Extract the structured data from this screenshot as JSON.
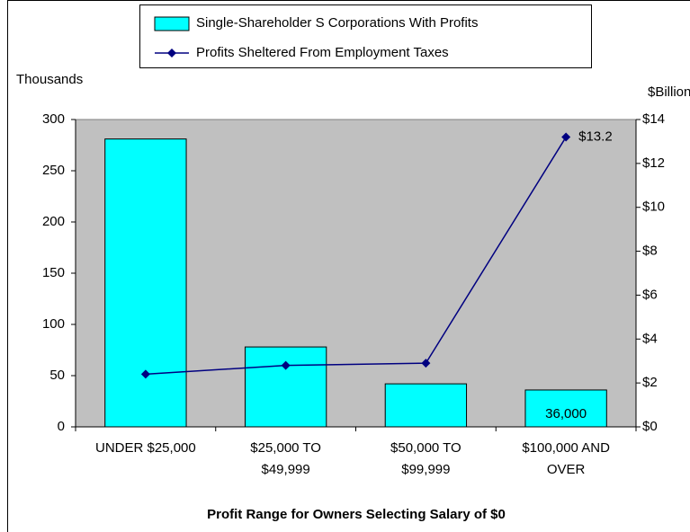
{
  "chart_data": {
    "type": "bar",
    "categories": [
      "UNDER $25,000",
      "$25,000 TO $49,999",
      "$50,000 TO $99,999",
      "$100,000 AND OVER"
    ],
    "series": [
      {
        "name": "Single-Shareholder S Corporations With Profits",
        "type": "bar",
        "color": "#00ffff",
        "values": [
          281,
          78,
          42,
          36
        ],
        "value_labels": [
          null,
          null,
          null,
          "36,000"
        ]
      },
      {
        "name": "Profits Sheltered From Employment Taxes",
        "type": "line",
        "color": "#000080",
        "axis": "y2",
        "values": [
          2.4,
          2.8,
          2.9,
          13.2
        ],
        "value_labels": [
          null,
          null,
          null,
          "$13.2"
        ]
      }
    ],
    "ylabel": "Thousands",
    "y2label": "$Billions",
    "xlabel": "Profit Range for Owners Selecting Salary of $0",
    "ylim": [
      0,
      300
    ],
    "yticks": [
      0,
      50,
      100,
      150,
      200,
      250,
      300
    ],
    "y2lim": [
      0,
      14
    ],
    "y2ticks": [
      {
        "value": 0,
        "label": "$0"
      },
      {
        "value": 2,
        "label": "$2"
      },
      {
        "value": 4,
        "label": "$4"
      },
      {
        "value": 6,
        "label": "$6"
      },
      {
        "value": 8,
        "label": "$8"
      },
      {
        "value": 10,
        "label": "$10"
      },
      {
        "value": 12,
        "label": "$12"
      },
      {
        "value": 14,
        "label": "$14"
      }
    ],
    "plot_background": "#c0c0c0",
    "legend": "top"
  }
}
